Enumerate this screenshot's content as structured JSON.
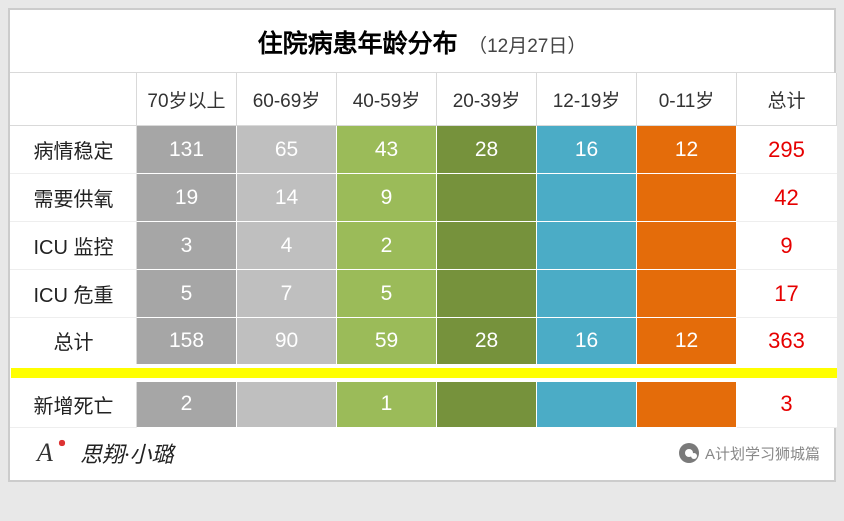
{
  "title": {
    "main": "住院病患年龄分布",
    "sub": "（12月27日）"
  },
  "columns": [
    "70岁以上",
    "60-69岁",
    "40-59岁",
    "20-39岁",
    "12-19岁",
    "0-11岁"
  ],
  "total_label": "总计",
  "col_colors": [
    "#a6a6a6",
    "#bfbfbf",
    "#9bbb59",
    "#76923c",
    "#4bacc6",
    "#e46c0a"
  ],
  "sep_color": "#ffff00",
  "rows": [
    {
      "label": "病情稳定",
      "cells": [
        "131",
        "65",
        "43",
        "28",
        "16",
        "12"
      ],
      "total": "295"
    },
    {
      "label": "需要供氧",
      "cells": [
        "19",
        "14",
        "9",
        "",
        "",
        ""
      ],
      "total": "42"
    },
    {
      "label": "ICU 监控",
      "cells": [
        "3",
        "4",
        "2",
        "",
        "",
        ""
      ],
      "total": "9"
    },
    {
      "label": "ICU 危重",
      "cells": [
        "5",
        "7",
        "5",
        "",
        "",
        ""
      ],
      "total": "17"
    },
    {
      "label": "总计",
      "cells": [
        "158",
        "90",
        "59",
        "28",
        "16",
        "12"
      ],
      "total": "363"
    }
  ],
  "death_row": {
    "label": "新增死亡",
    "cells": [
      "2",
      "",
      "1",
      "",
      "",
      ""
    ],
    "total": "3"
  },
  "footer": {
    "logo_text": "A",
    "brand": "思翔·小璐",
    "source": "A计划学习狮城篇"
  }
}
